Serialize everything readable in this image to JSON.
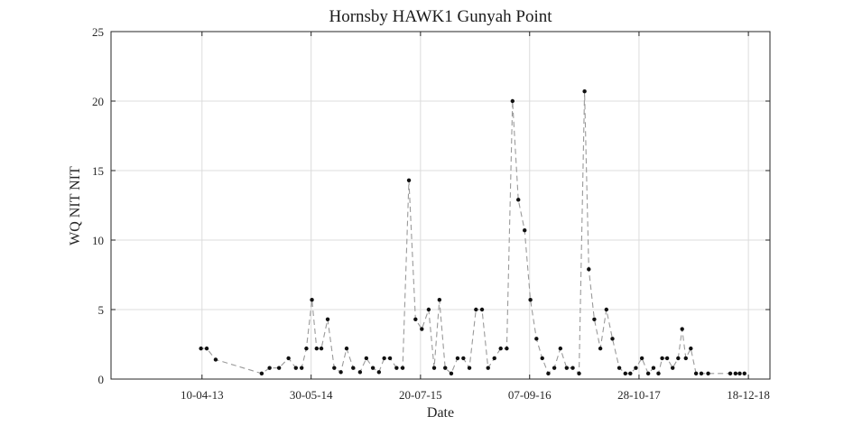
{
  "chart_data": {
    "type": "line",
    "title": "Hornsby HAWK1 Gunyah Point",
    "xlabel": "Date",
    "ylabel": "WQ NIT NIT",
    "x_axis_type": "date",
    "x_tick_labels": [
      "10-04-13",
      "30-05-14",
      "20-07-15",
      "07-09-16",
      "28-10-17",
      "18-12-18"
    ],
    "x_ticks": [
      "2013-04-10",
      "2014-05-30",
      "2015-07-20",
      "2016-09-07",
      "2017-10-28",
      "2018-12-18"
    ],
    "xlim": [
      "2012-04-29",
      "2019-03-10"
    ],
    "ylim": [
      0,
      25
    ],
    "y_ticks": [
      0,
      5,
      10,
      15,
      20,
      25
    ],
    "grid": true,
    "line_style": "dashed",
    "line_color": "#9a9a9a",
    "marker_color": "#111111",
    "series": [
      {
        "x": [
          "2013-04-06",
          "2013-04-28",
          "2013-06-01",
          "2013-11-23",
          "2013-12-23",
          "2014-01-28",
          "2014-03-05",
          "2014-04-02",
          "2014-04-24",
          "2014-05-12",
          "2014-06-02",
          "2014-06-20",
          "2014-07-08",
          "2014-08-01",
          "2014-08-26",
          "2014-09-20",
          "2014-10-12",
          "2014-11-06",
          "2014-12-02",
          "2014-12-26",
          "2015-01-20",
          "2015-02-12",
          "2015-03-04",
          "2015-03-26",
          "2015-04-20",
          "2015-05-13",
          "2015-06-06",
          "2015-07-01",
          "2015-07-25",
          "2015-08-20",
          "2015-09-10",
          "2015-09-30",
          "2015-10-22",
          "2015-11-14",
          "2015-12-08",
          "2015-12-30",
          "2016-01-22",
          "2016-02-16",
          "2016-03-10",
          "2016-04-02",
          "2016-04-26",
          "2016-05-20",
          "2016-06-12",
          "2016-07-04",
          "2016-07-26",
          "2016-08-19",
          "2016-09-10",
          "2016-10-03",
          "2016-10-25",
          "2016-11-17",
          "2016-12-10",
          "2017-01-02",
          "2017-01-26",
          "2017-02-18",
          "2017-03-14",
          "2017-04-04",
          "2017-04-20",
          "2017-05-11",
          "2017-06-03",
          "2017-06-26",
          "2017-07-19",
          "2017-08-14",
          "2017-09-06",
          "2017-09-25",
          "2017-10-16",
          "2017-11-08",
          "2017-12-02",
          "2017-12-22",
          "2018-01-10",
          "2018-01-24",
          "2018-02-12",
          "2018-03-05",
          "2018-03-26",
          "2018-04-10",
          "2018-04-24",
          "2018-05-13",
          "2018-06-02",
          "2018-06-22",
          "2018-07-18",
          "2018-10-10",
          "2018-10-30",
          "2018-11-15",
          "2018-12-03"
        ],
        "values": [
          2.2,
          2.2,
          1.4,
          0.4,
          0.8,
          0.8,
          1.5,
          0.8,
          0.8,
          2.2,
          5.7,
          2.2,
          2.2,
          4.3,
          0.8,
          0.5,
          2.2,
          0.8,
          0.5,
          1.5,
          0.8,
          0.5,
          1.5,
          1.5,
          0.8,
          0.8,
          14.3,
          4.3,
          3.6,
          5.0,
          0.8,
          5.7,
          0.8,
          0.4,
          1.5,
          1.5,
          0.8,
          5.0,
          5.0,
          0.8,
          1.5,
          2.2,
          2.2,
          20.0,
          12.9,
          10.7,
          5.7,
          2.9,
          1.5,
          0.4,
          0.8,
          2.2,
          0.8,
          0.8,
          0.4,
          20.7,
          7.9,
          4.3,
          2.2,
          5.0,
          2.9,
          0.8,
          0.4,
          0.4,
          0.8,
          1.5,
          0.4,
          0.8,
          0.4,
          1.5,
          1.5,
          0.8,
          1.5,
          3.6,
          1.5,
          2.2,
          0.4,
          0.4,
          0.4,
          0.4,
          0.4,
          0.4,
          0.4
        ]
      }
    ]
  }
}
